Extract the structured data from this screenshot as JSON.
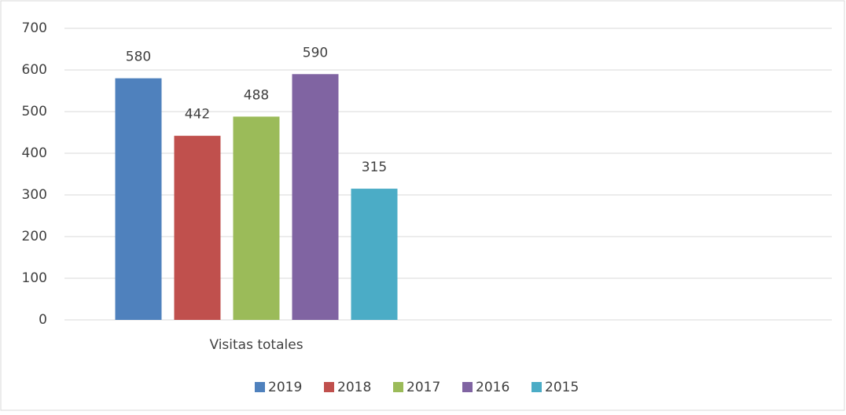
{
  "chart_data": {
    "type": "bar",
    "categories": [
      "Visitas totales",
      null
    ],
    "series": [
      {
        "name": "2019",
        "color": "#4f81bd",
        "values": [
          580,
          null
        ]
      },
      {
        "name": "2018",
        "color": "#c0504d",
        "values": [
          442,
          null
        ]
      },
      {
        "name": "2017",
        "color": "#9bbb59",
        "values": [
          488,
          null
        ]
      },
      {
        "name": "2016",
        "color": "#8064a2",
        "values": [
          590,
          null
        ]
      },
      {
        "name": "2015",
        "color": "#4bacc6",
        "values": [
          315,
          null
        ]
      }
    ],
    "ylim": [
      0,
      700
    ],
    "yticks": [
      0,
      100,
      200,
      300,
      400,
      500,
      600,
      700
    ],
    "grid": true,
    "legend": "bottom"
  }
}
